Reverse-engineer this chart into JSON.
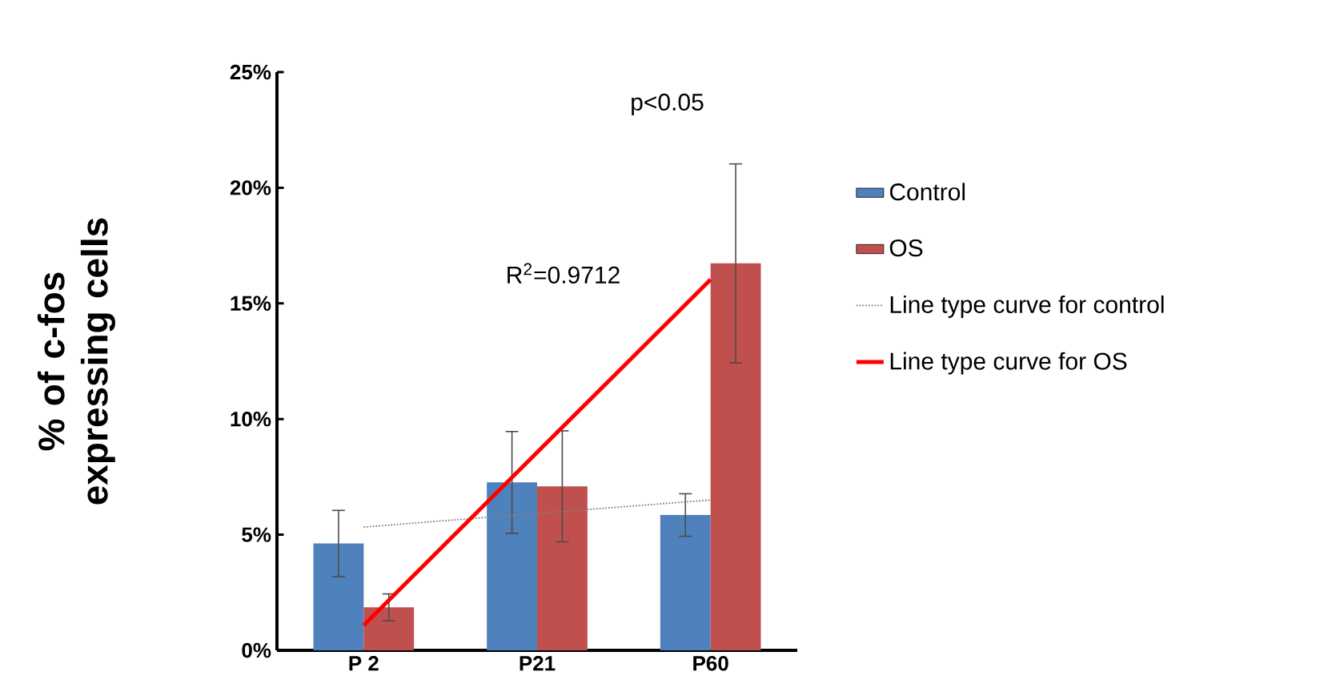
{
  "chart_data": {
    "type": "bar",
    "ylabel": "% of c-fos expressing cells",
    "categories": [
      "P 2",
      "P21",
      "P60"
    ],
    "series": [
      {
        "name": "Control",
        "color": "#4f81bd",
        "values": [
          4.62,
          7.26,
          5.85
        ],
        "errors": [
          1.43,
          2.2,
          0.92
        ]
      },
      {
        "name": "OS",
        "color": "#c0504d",
        "values": [
          1.86,
          7.09,
          16.73
        ],
        "errors": [
          0.58,
          2.4,
          4.3
        ]
      },
      {
        "name": "Line type curve for control",
        "type": "line",
        "color": "#808080",
        "line_style": "dotted",
        "values": [
          5.33,
          5.92,
          6.5
        ]
      },
      {
        "name": "Line type curve for OS",
        "type": "line",
        "color": "#ff0000",
        "line_style": "solid",
        "values": [
          1.08,
          8.56,
          16.03
        ]
      }
    ],
    "ylim": [
      0,
      25
    ],
    "yticks": [
      {
        "value": 0,
        "label": "0%"
      },
      {
        "value": 5,
        "label": "5%"
      },
      {
        "value": 10,
        "label": "10%"
      },
      {
        "value": 15,
        "label": "15%"
      },
      {
        "value": 20,
        "label": "20%"
      },
      {
        "value": 25,
        "label": "25%"
      }
    ],
    "annotations": [
      "p<0.05",
      "R$^{2}$=0.9712"
    ],
    "legend": "right",
    "marker": "none"
  }
}
